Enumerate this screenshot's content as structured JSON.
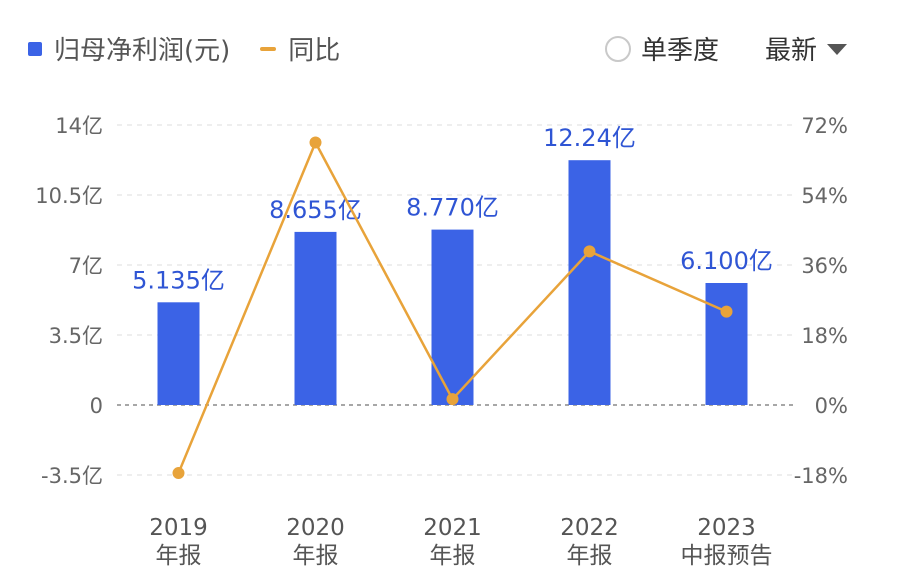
{
  "legend": {
    "bar_label": "归母净利润(元)",
    "line_label": "同比"
  },
  "controls": {
    "quarter_toggle_label": "单季度",
    "dropdown_label": "最新"
  },
  "colors": {
    "bar": "#3b63e6",
    "line": "#e8a33a",
    "label": "#2f55d4"
  },
  "chart_data": {
    "type": "bar",
    "categories": [
      [
        "2019",
        "年报"
      ],
      [
        "2020",
        "年报"
      ],
      [
        "2021",
        "年报"
      ],
      [
        "2022",
        "年报"
      ],
      [
        "2023",
        "中报预告"
      ]
    ],
    "series": [
      {
        "name": "归母净利润(元)",
        "type": "bar",
        "axis": "left",
        "values": [
          5.135,
          8.655,
          8.77,
          12.24,
          6.1
        ],
        "labels": [
          "5.135亿",
          "8.655亿",
          "8.770亿",
          "12.24亿",
          "6.100亿"
        ]
      },
      {
        "name": "同比",
        "type": "line",
        "axis": "right",
        "values": [
          -17.5,
          67.5,
          1.5,
          39.5,
          24
        ]
      }
    ],
    "y_left": {
      "ylim": [
        -3.5,
        14
      ],
      "ticks": [
        -3.5,
        0,
        3.5,
        7,
        10.5,
        14
      ],
      "tick_labels": [
        "-3.5亿",
        "0",
        "3.5亿",
        "7亿",
        "10.5亿",
        "14亿"
      ]
    },
    "y_right": {
      "ylim": [
        -18,
        72
      ],
      "ticks": [
        -18,
        0,
        18,
        36,
        54,
        72
      ],
      "tick_labels": [
        "-18%",
        "0%",
        "18%",
        "36%",
        "54%",
        "72%"
      ]
    },
    "grid": true
  }
}
